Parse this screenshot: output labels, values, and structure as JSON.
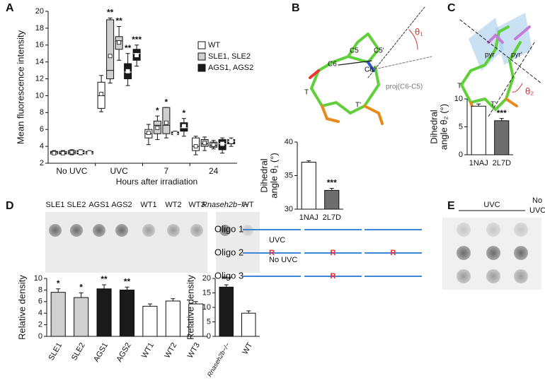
{
  "panel_labels": [
    "A",
    "B",
    "C",
    "D",
    "E"
  ],
  "structure_b": {
    "labels": [
      "C5",
      "C5'",
      "C6",
      "C6'",
      "T",
      "T'",
      "θ₁",
      "proj(C6-C5)"
    ]
  },
  "structure_c": {
    "labels": [
      "pyr",
      "pyr'",
      "T",
      "T'",
      "θ₂"
    ]
  },
  "blot_d": {
    "lanes": [
      "SLE1",
      "SLE2",
      "AGS1",
      "AGS2",
      "WT1",
      "WT2",
      "WT3"
    ],
    "lanes_right": [
      "Rnaseh2b−/−",
      "WT"
    ],
    "rows": [
      "UVC",
      "No UVC"
    ]
  },
  "oligo_e": {
    "oligos": [
      {
        "name": "Oligo 1",
        "marks": []
      },
      {
        "name": "Oligo 2",
        "marks": [
          "R",
          "R",
          "R"
        ]
      },
      {
        "name": "Oligo 3",
        "marks": [
          "R"
        ]
      }
    ],
    "header": "UVC",
    "control": [
      "No",
      "UVC"
    ]
  },
  "chart_data": [
    {
      "type": "box",
      "x_label": "Hours after irradiation",
      "y_label": "Mean fluorescence intensity",
      "categories": [
        "No UVC",
        "UVC",
        "7",
        "24"
      ],
      "ylim": [
        2,
        20
      ],
      "yticks": [
        2,
        4,
        6,
        8,
        10,
        12,
        14,
        16,
        18,
        20
      ],
      "series": [
        {
          "name": "WT",
          "color": "#ffffff",
          "boxes": [
            [
              {
                "min": 3.0,
                "q1": 3.1,
                "median": 3.3,
                "q3": 3.4,
                "max": 3.5,
                "mean": 3.2
              }
            ],
            [
              {
                "min": 8.1,
                "q1": 8.5,
                "median": 10,
                "q3": 11.6,
                "max": 12.4,
                "mean": 10.2
              }
            ],
            [
              {
                "min": 4.2,
                "q1": 5,
                "median": 5.5,
                "q3": 6,
                "max": 6.6,
                "mean": 5.6
              }
            ],
            [
              {
                "min": 3.0,
                "q1": 3.5,
                "median": 4,
                "q3": 5,
                "max": 5.2,
                "mean": 4
              }
            ]
          ]
        },
        {
          "name": "SLE1, SLE2",
          "color": "#cfcfcf",
          "boxes": [
            [
              {
                "min": 3.0,
                "q1": 3.1,
                "median": 3.2,
                "q3": 3.4,
                "max": 3.5,
                "mean": 3.2
              },
              {
                "min": 3.0,
                "q1": 3.1,
                "median": 3.3,
                "q3": 3.5,
                "max": 3.6,
                "mean": 3.3
              }
            ],
            [
              {
                "min": 11.5,
                "q1": 12,
                "median": 13,
                "q3": 19,
                "max": 19.2,
                "mean": 14.7,
                "label": "**"
              },
              {
                "min": 14.2,
                "q1": 15.5,
                "median": 16.5,
                "q3": 17,
                "max": 18.2,
                "mean": 16.3,
                "label": "**"
              }
            ],
            [
              {
                "min": 4.8,
                "q1": 5.5,
                "median": 6.5,
                "q3": 7,
                "max": 7.6,
                "mean": 6.2,
                "label": "*"
              },
              {
                "min": 5,
                "q1": 5.5,
                "median": 6.5,
                "q3": 8.6,
                "max": 8.6,
                "mean": 6.8,
                "label": "*"
              }
            ],
            [
              {
                "min": 3.5,
                "q1": 4,
                "median": 4.3,
                "q3": 4.8,
                "max": 5.1,
                "mean": 4.4
              },
              {
                "min": 3.7,
                "q1": 3.9,
                "median": 4.1,
                "q3": 4.5,
                "max": 4.7,
                "mean": 4.2
              }
            ]
          ]
        },
        {
          "name": "AGS1, AGS2",
          "color": "#1a1a1a",
          "boxes": [
            [
              {
                "min": 3.0,
                "q1": 3.1,
                "median": 3.3,
                "q3": 3.5,
                "max": 3.6,
                "mean": 3.3
              },
              {
                "min": 3.0,
                "q1": 3.1,
                "median": 3.2,
                "q3": 3.4,
                "max": 3.5,
                "mean": 3.2
              }
            ],
            [
              {
                "min": 11.2,
                "q1": 12,
                "median": 12.8,
                "q3": 13.8,
                "max": 15,
                "mean": 12.9,
                "label": "**"
              },
              {
                "min": 13.5,
                "q1": 14.2,
                "median": 15,
                "q3": 15.5,
                "max": 16,
                "mean": 14.8,
                "label": "***"
              }
            ],
            [
              {
                "min": 5.3,
                "q1": 5.4,
                "median": 5.5,
                "q3": 5.7,
                "max": 5.8,
                "mean": 5.5
              },
              {
                "min": 5.2,
                "q1": 5.8,
                "median": 6.2,
                "q3": 6.8,
                "max": 7.3,
                "mean": 6.4,
                "label": "*"
              }
            ],
            [
              {
                "min": 3.2,
                "q1": 3.6,
                "median": 4.3,
                "q3": 4.8,
                "max": 5,
                "mean": 4.3
              },
              {
                "min": 4,
                "q1": 4.3,
                "median": 4.6,
                "q3": 4.8,
                "max": 5,
                "mean": 4.6
              }
            ]
          ]
        }
      ]
    },
    {
      "type": "bar",
      "y_label": [
        "Dihedral",
        "angle θ₁ (°)"
      ],
      "categories": [
        "1NAJ",
        "2L7D"
      ],
      "values": [
        37,
        32.8
      ],
      "errors": [
        0.2,
        0.3
      ],
      "colors": [
        "#ffffff",
        "#6e6e6e"
      ],
      "significance": [
        null,
        "***"
      ],
      "ylim": [
        30,
        40
      ],
      "yticks": [
        30,
        35,
        40
      ]
    },
    {
      "type": "bar",
      "y_label": [
        "Dihedral",
        "angle θ₂ (°)"
      ],
      "categories": [
        "1NAJ",
        "2L7D"
      ],
      "values": [
        8.7,
        6.1
      ],
      "errors": [
        0.4,
        0.4
      ],
      "colors": [
        "#ffffff",
        "#6e6e6e"
      ],
      "significance": [
        null,
        "***"
      ],
      "ylim": [
        0,
        10
      ],
      "yticks": [
        0,
        5,
        10
      ]
    },
    {
      "type": "bar",
      "y_label": [
        "Relative density"
      ],
      "categories": [
        "SLE1",
        "SLE2",
        "AGS1",
        "AGS2",
        "WT1",
        "WT2",
        "WT3"
      ],
      "values": [
        7.6,
        6.7,
        8.2,
        8.0,
        5.2,
        6.1,
        5.6
      ],
      "errors": [
        0.6,
        0.8,
        0.7,
        0.5,
        0.4,
        0.4,
        0.4
      ],
      "colors": [
        "#d0d0d0",
        "#d0d0d0",
        "#1a1a1a",
        "#1a1a1a",
        "#ffffff",
        "#ffffff",
        "#ffffff"
      ],
      "significance": [
        "*",
        "*",
        "**",
        "**",
        null,
        null,
        null
      ],
      "ylim": [
        0,
        10
      ],
      "yticks": [
        0,
        2,
        4,
        6,
        8,
        10
      ]
    },
    {
      "type": "bar",
      "y_label": [
        "Relative density"
      ],
      "categories": [
        "Rnaseh2b−/−",
        "WT"
      ],
      "values": [
        17,
        8
      ],
      "errors": [
        0.8,
        0.8
      ],
      "colors": [
        "#1a1a1a",
        "#ffffff"
      ],
      "significance": [
        "***",
        null
      ],
      "ylim": [
        0,
        20
      ],
      "yticks": [
        0,
        5,
        10,
        15,
        20
      ]
    }
  ]
}
